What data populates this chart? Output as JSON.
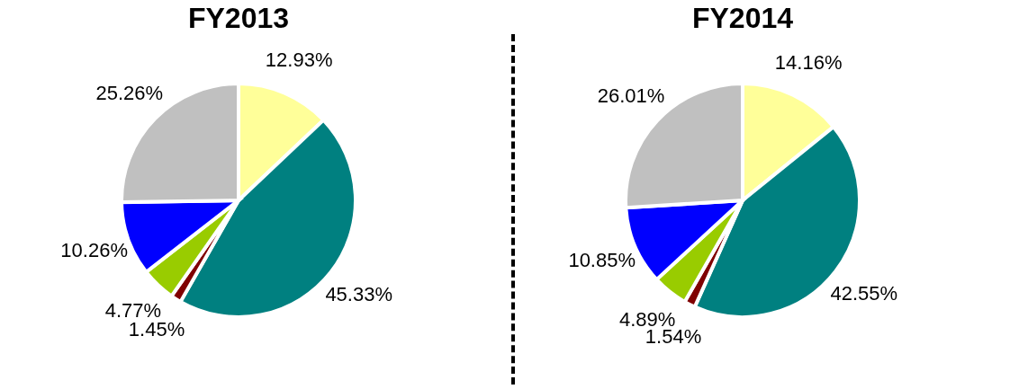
{
  "chart_data": [
    {
      "type": "pie",
      "title": "FY2013",
      "categories": [
        null,
        null,
        null,
        null,
        null,
        null
      ],
      "values": [
        12.93,
        45.33,
        1.45,
        4.77,
        10.26,
        25.26
      ],
      "value_labels": [
        "12.93%",
        "45.33%",
        "1.45%",
        "4.77%",
        "10.26%",
        "25.26%"
      ],
      "colors": [
        "#ffff99",
        "#008080",
        "#800000",
        "#99cc00",
        "#0000ff",
        "#c0c0c0"
      ]
    },
    {
      "type": "pie",
      "title": "FY2014",
      "categories": [
        null,
        null,
        null,
        null,
        null,
        null
      ],
      "values": [
        14.16,
        42.55,
        1.54,
        4.89,
        10.85,
        26.01
      ],
      "value_labels": [
        "14.16%",
        "42.55%",
        "1.54%",
        "4.89%",
        "10.85%",
        "26.01%"
      ],
      "colors": [
        "#ffff99",
        "#008080",
        "#800000",
        "#99cc00",
        "#0000ff",
        "#c0c0c0"
      ]
    }
  ]
}
